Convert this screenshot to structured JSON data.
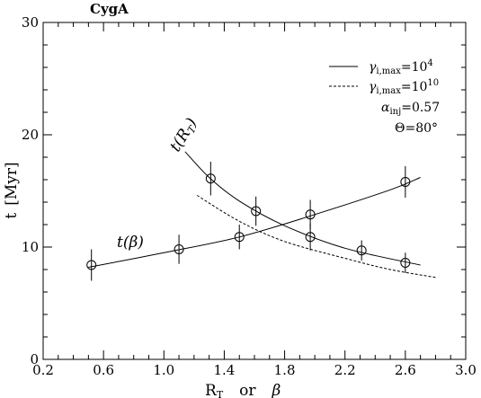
{
  "chart_data": {
    "type": "scatter",
    "title": "CygA",
    "xlabel": "R_T or β",
    "ylabel": "t [Myr]",
    "xlim": [
      0.2,
      3.0
    ],
    "ylim": [
      0,
      30
    ],
    "x_ticks": [
      "0.2",
      "0.6",
      "1.0",
      "1.4",
      "1.8",
      "2.2",
      "2.6",
      "3.0"
    ],
    "y_ticks": [
      "0",
      "10",
      "20",
      "30"
    ],
    "grid": false,
    "legend_position": "top-right",
    "legend": [
      {
        "label": "γ_i,max=10^4",
        "style": "solid"
      },
      {
        "label": "γ_i,max=10^10",
        "style": "dashed"
      }
    ],
    "annotations": [
      "α_inj=0.57",
      "Θ=80°"
    ],
    "curve_labels": [
      "t(R_T)",
      "t(β)"
    ],
    "series": [
      {
        "name": "t(β)",
        "style": "solid",
        "points": [
          {
            "x": 0.52,
            "y": 8.4,
            "err": 1.4
          },
          {
            "x": 1.1,
            "y": 9.8,
            "err": 1.3
          },
          {
            "x": 1.5,
            "y": 10.9,
            "err": 1.1
          },
          {
            "x": 1.97,
            "y": 12.9,
            "err": 1.3
          },
          {
            "x": 2.6,
            "y": 15.8,
            "err": 1.4
          }
        ],
        "curve": [
          [
            0.5,
            8.2
          ],
          [
            1.0,
            9.5
          ],
          [
            1.5,
            10.9
          ],
          [
            2.0,
            12.9
          ],
          [
            2.5,
            15.1
          ],
          [
            2.7,
            16.2
          ]
        ]
      },
      {
        "name": "t(R_T)",
        "style": "solid",
        "points": [
          {
            "x": 1.31,
            "y": 16.1,
            "err": 1.5
          },
          {
            "x": 1.61,
            "y": 13.2,
            "err": 1.3
          },
          {
            "x": 1.97,
            "y": 10.9,
            "err": 1.2
          },
          {
            "x": 2.31,
            "y": 9.7,
            "err": 0.9
          },
          {
            "x": 2.6,
            "y": 8.6,
            "err": 0.9
          }
        ],
        "curve": [
          [
            1.14,
            18.5
          ],
          [
            1.3,
            16.2
          ],
          [
            1.5,
            14.1
          ],
          [
            1.8,
            11.9
          ],
          [
            2.2,
            9.9
          ],
          [
            2.7,
            8.4
          ]
        ]
      },
      {
        "name": "",
        "style": "dashed",
        "points": [],
        "curve": [
          [
            1.22,
            14.6
          ],
          [
            1.5,
            12.3
          ],
          [
            1.8,
            10.5
          ],
          [
            2.2,
            9.0
          ],
          [
            2.5,
            8.0
          ],
          [
            2.8,
            7.3
          ]
        ]
      }
    ]
  }
}
